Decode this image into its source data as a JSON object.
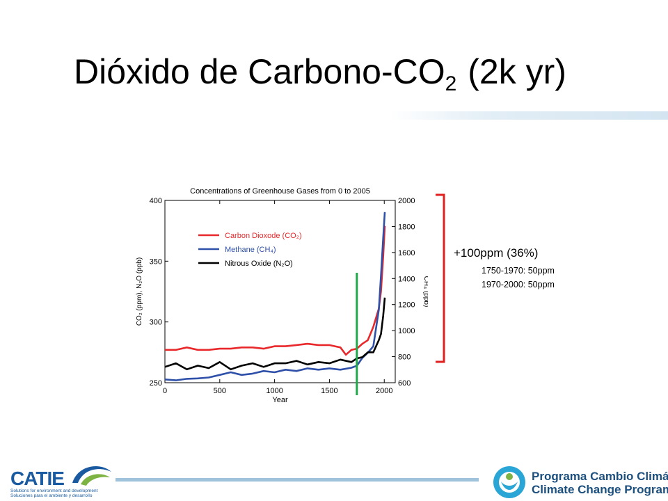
{
  "slide": {
    "title_main": "Dióxido de Carbono-CO",
    "title_sub": "2",
    "title_tail": "(2k yr)"
  },
  "annotation": {
    "main": "+100ppm (36%)",
    "lines": [
      "1750-1970: 50ppm",
      "1970-2000: 50ppm"
    ],
    "marker_year": 1750
  },
  "footer": {
    "catie_word": "CATIE",
    "catie_tag_en": "Solutions for environment and development",
    "catie_tag_es": "Soluciones para el ambiente y desarrollo",
    "program_es": "Programa Cambio Climático",
    "program_en": "Climate Change Program"
  },
  "colors": {
    "co2": "#e8282b",
    "ch4": "#2f50a8",
    "n2o": "#000000",
    "marker": "#1fa84a",
    "brace": "#e02020",
    "title_bar": "#d4e5f1",
    "program_blue": "#1b4f7e",
    "catie_blue": "#1a5aa0",
    "catie_green": "#7cb342"
  },
  "chart_data": {
    "type": "line",
    "title": "Concentrations of Greenhouse Gases from 0 to 2005",
    "xlabel": "Year",
    "ylabel_left": "CO₂ (ppm), N₂O (ppb)",
    "ylabel_right": "CH₄ (ppb)",
    "xlim": [
      0,
      2100
    ],
    "ylim_left": [
      250,
      400
    ],
    "ylim_right": [
      600,
      2000
    ],
    "x_ticks": [
      0,
      500,
      1000,
      1500,
      2000
    ],
    "y_ticks_left": [
      250,
      300,
      350,
      400
    ],
    "y_ticks_right": [
      600,
      800,
      1000,
      1200,
      1400,
      1600,
      1800,
      2000
    ],
    "legend": [
      {
        "label": "Carbon Dioxode (CO₂)",
        "color": "#e8282b"
      },
      {
        "label": "Methane (CH₄)",
        "color": "#2f50a8"
      },
      {
        "label": "Nitrous Oxide (N₂O)",
        "color": "#000000"
      }
    ],
    "legend_position": "upper-left",
    "series": [
      {
        "name": "Carbon Dioxode (CO₂)",
        "axis": "left",
        "x": [
          0,
          100,
          200,
          300,
          400,
          500,
          600,
          700,
          800,
          900,
          1000,
          1100,
          1200,
          1300,
          1400,
          1500,
          1550,
          1600,
          1650,
          1700,
          1750,
          1800,
          1850,
          1900,
          1950,
          1970,
          1990,
          2005
        ],
        "y": [
          277,
          277,
          279,
          277,
          277,
          278,
          278,
          279,
          279,
          278,
          280,
          280,
          281,
          282,
          281,
          281,
          280,
          279,
          273,
          277,
          278,
          282,
          285,
          296,
          311,
          325,
          354,
          379
        ]
      },
      {
        "name": "Methane (CH₄)",
        "axis": "left_from_right",
        "values_axis": "right",
        "x": [
          0,
          100,
          200,
          300,
          400,
          500,
          600,
          700,
          800,
          900,
          1000,
          1100,
          1200,
          1300,
          1400,
          1500,
          1600,
          1700,
          1750,
          1800,
          1850,
          1900,
          1950,
          1970,
          1990,
          2005
        ],
        "y": [
          625,
          618,
          630,
          633,
          640,
          660,
          680,
          660,
          670,
          690,
          680,
          700,
          690,
          710,
          700,
          710,
          700,
          715,
          730,
          790,
          830,
          880,
          1160,
          1420,
          1710,
          1910
        ]
      },
      {
        "name": "Nitrous Oxide (N₂O)",
        "axis": "left",
        "x": [
          0,
          100,
          200,
          300,
          400,
          500,
          600,
          700,
          800,
          900,
          1000,
          1100,
          1200,
          1300,
          1400,
          1500,
          1600,
          1700,
          1750,
          1800,
          1850,
          1900,
          1950,
          1970,
          1990,
          2005
        ],
        "y": [
          263,
          266,
          261,
          264,
          262,
          267,
          261,
          264,
          266,
          263,
          266,
          266,
          268,
          265,
          267,
          266,
          269,
          267,
          270,
          271,
          275,
          275,
          285,
          290,
          305,
          320
        ]
      }
    ]
  }
}
